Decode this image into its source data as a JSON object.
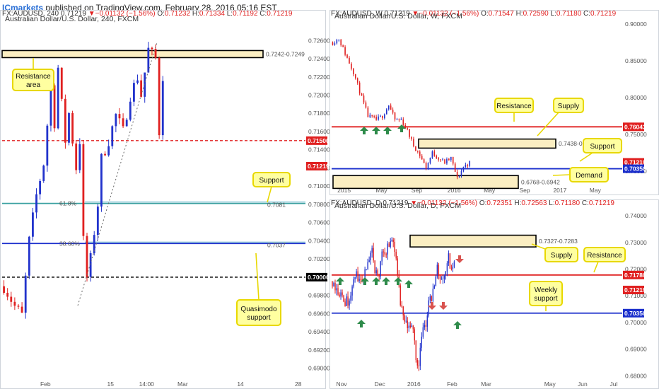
{
  "header": {
    "brand": "ICmarkets",
    "published": " published on TradingView.com, February 28, 2016 05:16 EST"
  },
  "colors": {
    "bull": "#2233cc",
    "bear": "#e02020",
    "resistance": "#e02020",
    "support": "#1a2ecc",
    "fib": "#3aa0a0",
    "zoneFill": "#fbeec2",
    "noteFill": "#ffffa0",
    "noteStroke": "#e8d800",
    "arrowGreen": "#2e8b4a",
    "arrowRed": "#d9534f"
  },
  "chart_data": [
    {
      "id": "h4",
      "type": "candlestick",
      "symbol_line": "FX:AUDUSD, 240",
      "title": "Australian Dollar/U.S. Dollar, 240, FXCM",
      "ohlc": {
        "o": "0.71232",
        "h": "0.71334",
        "l": "0.71192",
        "c": "0.71219",
        "chg": "▼−0.01132 (−1.56%)"
      },
      "ylim": [
        0.6888,
        0.7275
      ],
      "yticks": [
        "0.72600",
        "0.72400",
        "0.72200",
        "0.72000",
        "0.71800",
        "0.71600",
        "0.71400",
        "0.71200",
        "0.71000",
        "0.70800",
        "0.70600",
        "0.70400",
        "0.70200",
        "0.69800",
        "0.69600",
        "0.69400",
        "0.69200",
        "0.69000"
      ],
      "xticks": [
        {
          "label": "Feb",
          "i": 12
        },
        {
          "label": "15",
          "i": 30
        },
        {
          "label": "14:00",
          "i": 40
        },
        {
          "label": "Mar",
          "i": 50
        },
        {
          "label": "14",
          "i": 66
        },
        {
          "label": "28",
          "i": 82
        }
      ],
      "price_tags": [
        {
          "label": "0.71500",
          "value": 0.715,
          "color": "#e02020"
        },
        {
          "label": "0.71219",
          "value": 0.71219,
          "color": "#e02020"
        },
        {
          "label": "0.70000",
          "value": 0.7,
          "color": "#000000"
        }
      ],
      "zones": [
        {
          "label": "0.7242-0.7249",
          "from": 0.7242,
          "to": 0.7249
        }
      ],
      "levels": [
        {
          "value": 0.715,
          "color": "#e02020",
          "style": "dash",
          "tag": ""
        },
        {
          "value": 0.7081,
          "color": "#3aa0a0",
          "style": "solid",
          "tag": "0.7081"
        },
        {
          "value": 0.7037,
          "color": "#1a2ecc",
          "style": "solid",
          "tag": "0.7037"
        },
        {
          "value": 0.7,
          "color": "#000000",
          "style": "dash",
          "tag": ""
        }
      ],
      "fib_labels": [
        {
          "label": "61.8%",
          "value": 0.7081
        },
        {
          "label": "38.60%",
          "value": 0.7037
        }
      ],
      "notes": [
        {
          "lines": [
            "Resistance",
            "area"
          ]
        },
        {
          "lines": [
            "Support"
          ]
        },
        {
          "lines": [
            "Quasimodo",
            "support"
          ]
        }
      ]
    },
    {
      "id": "weekly",
      "type": "candlestick",
      "symbol_line": "FX:AUDUSD, W",
      "title": "Australian Dollar/U.S. Dollar, W, FXCM",
      "ohlc": {
        "o": "0.71547",
        "h": "0.72590",
        "l": "0.71180",
        "c": "0.71219",
        "chg": "▼−0.01132 (−1.56%)"
      },
      "ylim": [
        0.681,
        0.9
      ],
      "yticks": [
        "0.90000",
        "0.85000",
        "0.80000",
        "0.75000",
        "0.70000"
      ],
      "xticks": [
        {
          "label": "2015",
          "i": 6
        },
        {
          "label": "May",
          "i": 24
        },
        {
          "label": "Sep",
          "i": 41
        },
        {
          "label": "2016",
          "i": 59
        },
        {
          "label": "May",
          "i": 76
        },
        {
          "label": "Sep",
          "i": 93
        },
        {
          "label": "2017",
          "i": 110
        },
        {
          "label": "May",
          "i": 127
        }
      ],
      "price_tags": [
        {
          "label": "0.76043",
          "value": 0.76043,
          "color": "#e02020"
        },
        {
          "label": "0.71219",
          "value": 0.71219,
          "color": "#e02020"
        },
        {
          "label": "0.70350",
          "value": 0.7035,
          "color": "#1a2ecc"
        }
      ],
      "zones": [
        {
          "label": "0.7438-0.7315",
          "from": 0.7315,
          "to": 0.7438
        },
        {
          "label": "0.6768-0.6942",
          "from": 0.6768,
          "to": 0.6942
        }
      ],
      "levels": [
        {
          "value": 0.76043,
          "color": "#e02020"
        },
        {
          "value": 0.7035,
          "color": "#1a2ecc"
        }
      ],
      "notes": [
        {
          "lines": [
            "Resistance"
          ]
        },
        {
          "lines": [
            "Supply"
          ]
        },
        {
          "lines": [
            "Support"
          ]
        },
        {
          "lines": [
            "Demand"
          ]
        }
      ]
    },
    {
      "id": "daily",
      "type": "candlestick",
      "symbol_line": "FX:AUDUSD, D",
      "title": "Australian Dollar/U.S. Dollar, D, FXCM",
      "ohlc": {
        "o": "0.72351",
        "h": "0.72563",
        "l": "0.71180",
        "c": "0.71219",
        "chg": "▼−0.01132 (−1.56%)"
      },
      "ylim": [
        0.6788,
        0.7408
      ],
      "yticks": [
        "0.74000",
        "0.73000",
        "0.72000",
        "0.71000",
        "0.70000",
        "0.69000",
        "0.68000"
      ],
      "xticks": [
        {
          "label": "Nov",
          "i": 7
        },
        {
          "label": "Dec",
          "i": 34
        },
        {
          "label": "2016",
          "i": 58
        },
        {
          "label": "Feb",
          "i": 85
        },
        {
          "label": "Mar",
          "i": 109
        },
        {
          "label": "May",
          "i": 154
        },
        {
          "label": "Jun",
          "i": 177
        },
        {
          "label": "Jul",
          "i": 199
        }
      ],
      "price_tags": [
        {
          "label": "0.71780",
          "value": 0.7178,
          "color": "#e02020"
        },
        {
          "label": "0.71219",
          "value": 0.71219,
          "color": "#e02020"
        },
        {
          "label": "0.70350",
          "value": 0.7035,
          "color": "#1a2ecc"
        }
      ],
      "zones": [
        {
          "label": "0.7327-0.7283",
          "from": 0.7283,
          "to": 0.7327
        }
      ],
      "levels": [
        {
          "value": 0.7178,
          "color": "#e02020"
        },
        {
          "value": 0.7035,
          "color": "#1a2ecc"
        }
      ],
      "notes": [
        {
          "lines": [
            "Supply"
          ]
        },
        {
          "lines": [
            "Resistance"
          ]
        },
        {
          "lines": [
            "Weekly",
            "support"
          ]
        }
      ]
    }
  ]
}
